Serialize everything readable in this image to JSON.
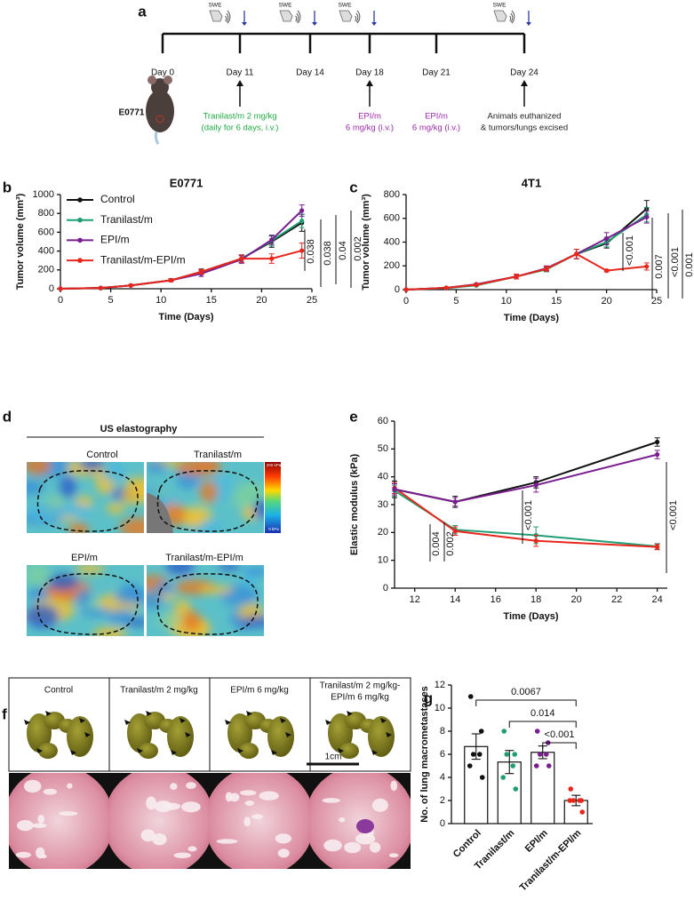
{
  "panel_labels": [
    "a",
    "b",
    "c",
    "d",
    "e",
    "f",
    "g"
  ],
  "timeline": {
    "days": [
      "Day 0",
      "Day 11",
      "Day 14",
      "Day 18",
      "Day 21",
      "Day 24"
    ],
    "swe_labels": [
      "SWE",
      "SWE",
      "SWE",
      "SWE"
    ],
    "mouse_label": "E0771",
    "treatments": [
      {
        "lines": [
          "Tranilast/m 2 mg/kg",
          "(daily for 6 days, i.v.)"
        ],
        "color": "#22a845"
      },
      {
        "lines": [
          "EPI/m",
          "6 mg/kg (i.v.)"
        ],
        "color": "#9b2aa8"
      },
      {
        "lines": [
          "EPI/m",
          "6 mg/kg (i.v.)"
        ],
        "color": "#9b2aa8"
      },
      {
        "lines": [
          "Animals euthanized",
          "& tumors/lungs excised"
        ],
        "color": "#222222"
      }
    ]
  },
  "chart_data": [
    {
      "type": "line",
      "title": "E0771",
      "x": [
        0,
        4,
        7,
        11,
        14,
        18,
        21,
        24
      ],
      "xlim": [
        0,
        25
      ],
      "xticks": [
        0,
        5,
        10,
        15,
        20,
        25
      ],
      "ylim": [
        0,
        1000
      ],
      "yticks": [
        0,
        200,
        400,
        600,
        800,
        1000
      ],
      "x_label": "Time (Days)",
      "y_label": "Tumor volume (mm³)",
      "legend": "upper left",
      "series": [
        {
          "name": "Control",
          "color": "#111111",
          "values": [
            0,
            8,
            35,
            90,
            180,
            320,
            500,
            700
          ],
          "errors": [
            0,
            2,
            5,
            15,
            30,
            40,
            60,
            90
          ]
        },
        {
          "name": "Tranilast/m",
          "color": "#1f9e72",
          "values": [
            0,
            8,
            35,
            90,
            175,
            320,
            510,
            720
          ],
          "errors": [
            0,
            2,
            5,
            15,
            25,
            35,
            55,
            70
          ]
        },
        {
          "name": "EPI/m",
          "color": "#7a1f8f",
          "values": [
            0,
            8,
            35,
            90,
            160,
            310,
            520,
            830
          ],
          "errors": [
            0,
            2,
            5,
            15,
            30,
            40,
            50,
            60
          ]
        },
        {
          "name": "Tranilast/m-EPI/m",
          "color": "#e8261c",
          "values": [
            0,
            8,
            35,
            90,
            180,
            320,
            320,
            405
          ],
          "errors": [
            0,
            2,
            5,
            15,
            25,
            40,
            50,
            80
          ]
        }
      ],
      "annotations": [
        "0.038",
        "0.038",
        "0.04",
        "0.002"
      ]
    },
    {
      "type": "line",
      "title": "4T1",
      "x": [
        0,
        4,
        7,
        11,
        14,
        17,
        20,
        24
      ],
      "xlim": [
        0,
        25
      ],
      "xticks": [
        0,
        5,
        10,
        15,
        20,
        25
      ],
      "ylim": [
        0,
        800
      ],
      "yticks": [
        0,
        200,
        400,
        600,
        800
      ],
      "x_label": "Time (Days)",
      "y_label": "Tumor volume (mm³)",
      "series": [
        {
          "name": "Control",
          "color": "#111111",
          "values": [
            0,
            15,
            40,
            110,
            175,
            300,
            390,
            680
          ],
          "errors": [
            0,
            3,
            5,
            20,
            20,
            40,
            40,
            70
          ]
        },
        {
          "name": "Tranilast/m",
          "color": "#1f9e72",
          "values": [
            0,
            12,
            35,
            110,
            170,
            300,
            400,
            630
          ],
          "errors": [
            0,
            3,
            5,
            20,
            20,
            40,
            40,
            60
          ]
        },
        {
          "name": "EPI/m",
          "color": "#7a1f8f",
          "values": [
            0,
            15,
            45,
            110,
            180,
            300,
            430,
            610
          ],
          "errors": [
            0,
            3,
            5,
            20,
            20,
            40,
            50,
            50
          ]
        },
        {
          "name": "Tranilast/m-EPI/m",
          "color": "#e8261c",
          "values": [
            0,
            15,
            40,
            110,
            175,
            300,
            160,
            195
          ],
          "errors": [
            0,
            3,
            5,
            20,
            20,
            40,
            10,
            30
          ]
        }
      ],
      "annotations": [
        "<0.001",
        "0.007",
        "<0.001",
        "0.001"
      ]
    },
    {
      "type": "line",
      "x": [
        11,
        14,
        18,
        24
      ],
      "xlim": [
        11,
        24.5
      ],
      "xticks": [
        12,
        14,
        16,
        18,
        20,
        22,
        24
      ],
      "ylim": [
        0,
        60
      ],
      "yticks": [
        0,
        10,
        20,
        30,
        40,
        50,
        60
      ],
      "x_label": "Time (Days)",
      "y_label": "Elastic modulus (kPa)",
      "series": [
        {
          "color": "#1f9e72",
          "values": [
            35,
            21,
            19,
            15
          ],
          "errors": [
            2,
            1.5,
            3,
            1
          ]
        },
        {
          "color": "#e8261c",
          "values": [
            36,
            20.5,
            17,
            14.8
          ],
          "errors": [
            2,
            1.5,
            2,
            1
          ]
        },
        {
          "color": "#111111",
          "values": [
            35.5,
            31,
            38,
            52.5
          ],
          "errors": [
            3,
            2,
            2,
            1.5
          ]
        },
        {
          "color": "#7a1f8f",
          "values": [
            35.5,
            31,
            37,
            48
          ],
          "errors": [
            2,
            1.5,
            2.5,
            1.5
          ]
        }
      ],
      "annotations": [
        "0.004",
        "0.002",
        "<0.001",
        "<0.001"
      ]
    },
    {
      "type": "bar",
      "categories": [
        "Control",
        "Tranilast/m",
        "EPI/m",
        "Tranilast/m-EPI/m"
      ],
      "values": [
        6.67,
        5.33,
        6.17,
        2.0
      ],
      "errors": [
        1.1,
        1.0,
        0.55,
        0.45
      ],
      "points": [
        [
          11,
          8,
          6,
          6,
          5,
          4
        ],
        [
          8,
          6,
          6,
          5,
          4,
          3
        ],
        [
          8,
          7,
          6,
          6,
          5,
          5
        ],
        [
          3,
          2,
          2,
          2,
          2,
          1
        ]
      ],
      "colors": [
        "#111111",
        "#1f9e72",
        "#7a1f8f",
        "#e8261c"
      ],
      "ylim": [
        0,
        12
      ],
      "yticks": [
        0,
        2,
        4,
        6,
        8,
        10,
        12
      ],
      "y_label": "No. of lung macrometastases",
      "annotations": [
        "0.0067",
        "0.014",
        "<0.001"
      ]
    }
  ],
  "elastography": {
    "title": "US elastography",
    "images": [
      "Control",
      "Tranilast/m",
      "EPI/m",
      "Tranilast/m-EPI/m"
    ],
    "colorbar": [
      "200 kPa",
      "0 kPa"
    ]
  },
  "lungs": {
    "groups": [
      [
        "Control"
      ],
      [
        "Tranilast/m 2 mg/kg"
      ],
      [
        "EPI/m 6 mg/kg"
      ],
      [
        "Tranilast/m 2 mg/kg-",
        "EPI/m 6 mg/kg"
      ]
    ],
    "scale_bar": "1cm"
  }
}
